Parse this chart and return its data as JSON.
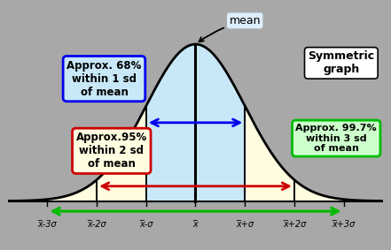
{
  "bg_color": "#a8a8a8",
  "curve_fill_3sd_color": "#fffce0",
  "curve_fill_1sd_color": "#c8e8f8",
  "curve_outline_color": "#000000",
  "sd_line_color": "#000000",
  "arrow_68_color": "#0000ee",
  "arrow_95_color": "#cc0000",
  "arrow_997_color": "#00bb00",
  "box_68_edgecolor": "#0000ee",
  "box_68_facecolor": "#c8e8f8",
  "box_95_edgecolor": "#cc0000",
  "box_95_facecolor": "#fffce0",
  "box_sym_edgecolor": "#000000",
  "box_sym_facecolor": "#ffffff",
  "box_997_edgecolor": "#00bb00",
  "box_997_facecolor": "#ccffcc",
  "mean_box_facecolor": "#ddeeff",
  "mean_box_edgecolor": "#aaaaaa",
  "title_68": "Approx. 68%\nwithin 1 sd\nof mean",
  "title_95": "Approx.95%\nwithin 2 sd\nof mean",
  "title_997": "Approx. 99.7%\nwithin 3 sd\nof mean",
  "title_sym": "Symmetric\ngraph",
  "title_mean": "mean",
  "tick_labels": [
    "x̅-3σ",
    "x̅-2σ",
    "x̅-σ",
    "x̅",
    "x̅+σ",
    "x̅+2σ",
    "x̅+3σ"
  ],
  "sds": [
    -3,
    -2,
    -1,
    0,
    1,
    2,
    3
  ]
}
